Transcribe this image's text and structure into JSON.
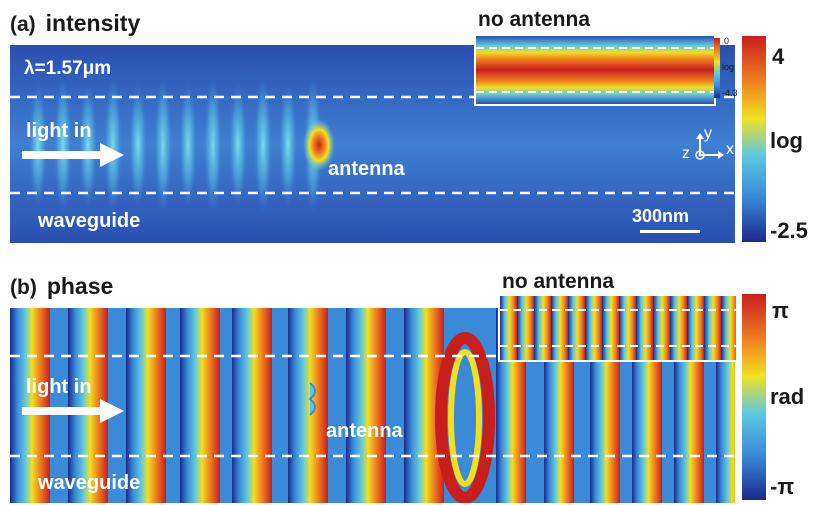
{
  "panel_a": {
    "label": "(a)",
    "title": "intensity",
    "wavelength": "λ=1.57μm",
    "light_in": "light in",
    "antenna": "antenna",
    "waveguide": "waveguide",
    "scale_bar": "300nm",
    "axes": {
      "y": "y",
      "z": "z",
      "x": "x"
    },
    "inset_title": "no antenna",
    "inset_colorbar": {
      "max": "0",
      "mid": "log",
      "min": "-4.3"
    },
    "colorbar": {
      "max": "4",
      "mid": "log",
      "min": "-2.5"
    }
  },
  "panel_b": {
    "label": "(b)",
    "title": "phase",
    "light_in": "light in",
    "antenna": "antenna",
    "waveguide": "waveguide",
    "inset_title": "no antenna",
    "colorbar": {
      "max": "π",
      "mid": "rad",
      "min": "-π"
    }
  },
  "colors": {
    "jet_low": "#1a2a8c",
    "jet_blue": "#3a8ad8",
    "jet_cyan": "#5ec8e0",
    "jet_yellow": "#f0e020",
    "jet_orange": "#f08020",
    "jet_red": "#c81e1e",
    "background_field": "#2f5fc0"
  },
  "icons": [
    "arrow-right-icon",
    "axis-triad-icon",
    "scale-bar-icon"
  ]
}
